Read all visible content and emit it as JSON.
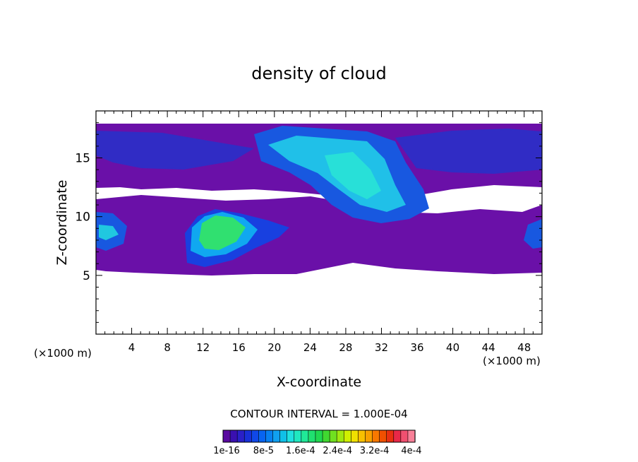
{
  "chart_data": {
    "type": "heatmap",
    "title": "density of cloud",
    "xlabel": "X-coordinate",
    "ylabel": "Z-coordinate",
    "x_unit_left": "(×1000 m)",
    "x_unit_right": "(×1000 m)",
    "xlim": [
      0,
      50
    ],
    "ylim": [
      0,
      19
    ],
    "x_ticks": [
      "4",
      "8",
      "12",
      "16",
      "20",
      "24",
      "28",
      "32",
      "36",
      "40",
      "44",
      "48"
    ],
    "y_ticks": [
      "5",
      "10",
      "15"
    ],
    "contour_interval": "CONTOUR INTERVAL = 1.000E-04",
    "colorbar_labels": [
      "1e-16",
      "8e-5",
      "1.6e-4",
      "2.4e-4",
      "3.2e-4",
      "4e-4"
    ],
    "colorbar_colors": [
      "#5a0aa0",
      "#3a10b0",
      "#2a20c8",
      "#1830d8",
      "#1048e8",
      "#0864f0",
      "#0880f0",
      "#10a0f0",
      "#10c0e8",
      "#20e0e0",
      "#20e8c0",
      "#20e898",
      "#20e070",
      "#20d850",
      "#40d830",
      "#70e020",
      "#a0e810",
      "#d0f000",
      "#f0e000",
      "#f8c000",
      "#f8a000",
      "#f87800",
      "#f05000",
      "#e83010",
      "#e82848",
      "#f05070",
      "#f88098"
    ],
    "regions": [
      {
        "band": "upper",
        "x": [
          0,
          50
        ],
        "y": [
          13,
          18.6
        ],
        "level": "1e-16"
      },
      {
        "band": "lower",
        "x": [
          0,
          50
        ],
        "y": [
          5.2,
          12.5
        ],
        "level": "1e-16"
      },
      {
        "feature": "cloud core",
        "x_center": 13.5,
        "y_center": 8.8,
        "level": "1.6e-4"
      },
      {
        "feature": "upper cloud",
        "x_center": 28,
        "y_center": 14.5,
        "level": "8e-5"
      }
    ]
  }
}
